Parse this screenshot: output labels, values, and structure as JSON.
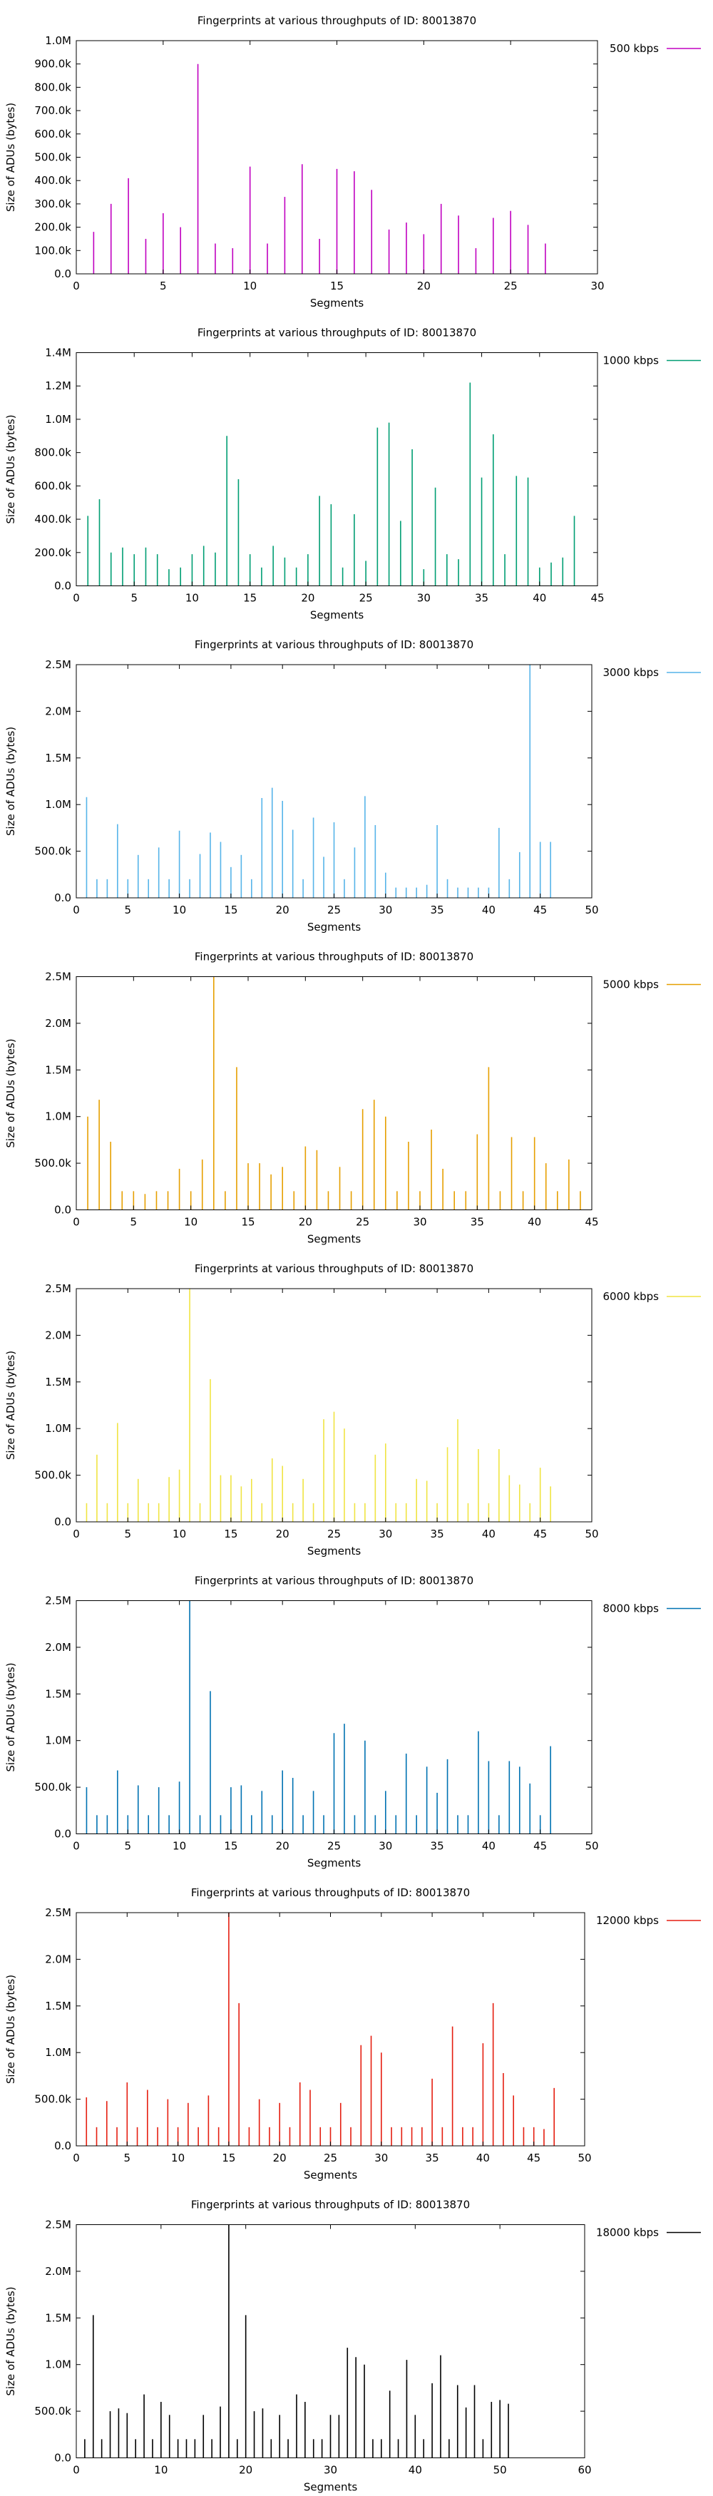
{
  "chart_data": [
    {
      "type": "bar",
      "title": "Fingerprints at various throughputs of ID: 80013870",
      "xlabel": "Segments",
      "ylabel": "Size of ADUs (bytes)",
      "legend": "500 kbps",
      "legend_position": "top-right-outside",
      "color": "#c000c0",
      "xlim": [
        0,
        30
      ],
      "ylim": [
        0,
        1000000
      ],
      "xticks": [
        0,
        5,
        10,
        15,
        20,
        25,
        30
      ],
      "xtick_labels": [
        "0",
        "5",
        "10",
        "15",
        "20",
        "25",
        "30"
      ],
      "yticks": [
        0,
        100000,
        200000,
        300000,
        400000,
        500000,
        600000,
        700000,
        800000,
        900000,
        1000000
      ],
      "ytick_labels": [
        "0.0",
        "100.0k",
        "200.0k",
        "300.0k",
        "400.0k",
        "500.0k",
        "600.0k",
        "700.0k",
        "800.0k",
        "900.0k",
        "1.0M"
      ],
      "x": [
        1,
        2,
        3,
        4,
        5,
        6,
        7,
        8,
        9,
        10,
        11,
        12,
        13,
        14,
        15,
        16,
        17,
        18,
        19,
        20,
        21,
        22,
        23,
        24,
        25,
        26,
        27
      ],
      "values": [
        180000,
        300000,
        410000,
        150000,
        260000,
        200000,
        900000,
        130000,
        110000,
        460000,
        130000,
        330000,
        470000,
        150000,
        450000,
        440000,
        360000,
        190000,
        220000,
        170000,
        300000,
        250000,
        110000,
        240000,
        270000,
        210000,
        130000
      ]
    },
    {
      "type": "bar",
      "title": "Fingerprints at various throughputs of ID: 80013870",
      "xlabel": "Segments",
      "ylabel": "Size of ADUs (bytes)",
      "legend": "1000 kbps",
      "legend_position": "top-right-outside",
      "color": "#009e73",
      "xlim": [
        0,
        45
      ],
      "ylim": [
        0,
        1400000
      ],
      "xticks": [
        0,
        5,
        10,
        15,
        20,
        25,
        30,
        35,
        40,
        45
      ],
      "xtick_labels": [
        "0",
        "5",
        "10",
        "15",
        "20",
        "25",
        "30",
        "35",
        "40",
        "45"
      ],
      "yticks": [
        0,
        200000,
        400000,
        600000,
        800000,
        1000000,
        1200000,
        1400000
      ],
      "ytick_labels": [
        "0.0",
        "200.0k",
        "400.0k",
        "600.0k",
        "800.0k",
        "1.0M",
        "1.2M",
        "1.4M"
      ],
      "x": [
        1,
        2,
        3,
        4,
        5,
        6,
        7,
        8,
        9,
        10,
        11,
        12,
        13,
        14,
        15,
        16,
        17,
        18,
        19,
        20,
        21,
        22,
        23,
        24,
        25,
        26,
        27,
        28,
        29,
        30,
        31,
        32,
        33,
        34,
        35,
        36,
        37,
        38,
        39,
        40,
        41,
        42,
        43
      ],
      "values": [
        420000,
        520000,
        200000,
        230000,
        190000,
        230000,
        190000,
        100000,
        110000,
        190000,
        240000,
        200000,
        900000,
        640000,
        190000,
        110000,
        240000,
        170000,
        110000,
        190000,
        540000,
        490000,
        110000,
        430000,
        150000,
        950000,
        980000,
        390000,
        820000,
        100000,
        590000,
        190000,
        160000,
        1220000,
        650000,
        910000,
        190000,
        660000,
        650000,
        110000,
        140000,
        170000,
        420000
      ]
    },
    {
      "type": "bar",
      "title": "Fingerprints at various throughputs of ID: 80013870",
      "xlabel": "Segments",
      "ylabel": "Size of ADUs (bytes)",
      "legend": "3000 kbps",
      "legend_position": "top-right-outside",
      "color": "#56b4e9",
      "xlim": [
        0,
        50
      ],
      "ylim": [
        0,
        2500000
      ],
      "xticks": [
        0,
        5,
        10,
        15,
        20,
        25,
        30,
        35,
        40,
        45,
        50
      ],
      "xtick_labels": [
        "0",
        "5",
        "10",
        "15",
        "20",
        "25",
        "30",
        "35",
        "40",
        "45",
        "50"
      ],
      "yticks": [
        0,
        500000,
        1000000,
        1500000,
        2000000,
        2500000
      ],
      "ytick_labels": [
        "0.0",
        "500.0k",
        "1.0M",
        "1.5M",
        "2.0M",
        "2.5M"
      ],
      "x": [
        1,
        2,
        3,
        4,
        5,
        6,
        7,
        8,
        9,
        10,
        11,
        12,
        13,
        14,
        15,
        16,
        17,
        18,
        19,
        20,
        21,
        22,
        23,
        24,
        25,
        26,
        27,
        28,
        29,
        30,
        31,
        32,
        33,
        34,
        35,
        36,
        37,
        38,
        39,
        40,
        41,
        42,
        43,
        44,
        45,
        46
      ],
      "values": [
        1080000,
        200000,
        200000,
        790000,
        200000,
        460000,
        200000,
        540000,
        200000,
        720000,
        200000,
        470000,
        700000,
        600000,
        330000,
        460000,
        200000,
        1070000,
        1180000,
        1040000,
        730000,
        200000,
        860000,
        440000,
        810000,
        200000,
        540000,
        1090000,
        780000,
        270000,
        110000,
        110000,
        110000,
        140000,
        780000,
        200000,
        110000,
        110000,
        110000,
        110000,
        750000,
        200000,
        490000,
        2500000,
        600000,
        600000
      ]
    },
    {
      "type": "bar",
      "title": "Fingerprints at various throughputs of ID: 80013870",
      "xlabel": "Segments",
      "ylabel": "Size of ADUs (bytes)",
      "legend": "5000 kbps",
      "legend_position": "top-right-outside",
      "color": "#e69f00",
      "xlim": [
        0,
        45
      ],
      "ylim": [
        0,
        2500000
      ],
      "xticks": [
        0,
        5,
        10,
        15,
        20,
        25,
        30,
        35,
        40,
        45
      ],
      "xtick_labels": [
        "0",
        "5",
        "10",
        "15",
        "20",
        "25",
        "30",
        "35",
        "40",
        "45"
      ],
      "yticks": [
        0,
        500000,
        1000000,
        1500000,
        2000000,
        2500000
      ],
      "ytick_labels": [
        "0.0",
        "500.0k",
        "1.0M",
        "1.5M",
        "2.0M",
        "2.5M"
      ],
      "x": [
        1,
        2,
        3,
        4,
        5,
        6,
        7,
        8,
        9,
        10,
        11,
        12,
        13,
        14,
        15,
        16,
        17,
        18,
        19,
        20,
        21,
        22,
        23,
        24,
        25,
        26,
        27,
        28,
        29,
        30,
        31,
        32,
        33,
        34,
        35,
        36,
        37,
        38,
        39,
        40,
        41,
        42,
        43,
        44
      ],
      "values": [
        1000000,
        1180000,
        730000,
        200000,
        200000,
        170000,
        200000,
        200000,
        440000,
        200000,
        540000,
        2500000,
        200000,
        1530000,
        500000,
        500000,
        380000,
        460000,
        200000,
        680000,
        640000,
        200000,
        460000,
        200000,
        1080000,
        1180000,
        1000000,
        200000,
        730000,
        200000,
        860000,
        440000,
        200000,
        200000,
        810000,
        1530000,
        200000,
        780000,
        200000,
        780000,
        500000,
        200000,
        540000,
        200000
      ]
    },
    {
      "type": "bar",
      "title": "Fingerprints at various throughputs of ID: 80013870",
      "xlabel": "Segments",
      "ylabel": "Size of ADUs (bytes)",
      "legend": "6000 kbps",
      "legend_position": "top-right-outside",
      "color": "#f0e442",
      "xlim": [
        0,
        50
      ],
      "ylim": [
        0,
        2500000
      ],
      "xticks": [
        0,
        5,
        10,
        15,
        20,
        25,
        30,
        35,
        40,
        45,
        50
      ],
      "xtick_labels": [
        "0",
        "5",
        "10",
        "15",
        "20",
        "25",
        "30",
        "35",
        "40",
        "45",
        "50"
      ],
      "yticks": [
        0,
        500000,
        1000000,
        1500000,
        2000000,
        2500000
      ],
      "ytick_labels": [
        "0.0",
        "500.0k",
        "1.0M",
        "1.5M",
        "2.0M",
        "2.5M"
      ],
      "x": [
        1,
        2,
        3,
        4,
        5,
        6,
        7,
        8,
        9,
        10,
        11,
        12,
        13,
        14,
        15,
        16,
        17,
        18,
        19,
        20,
        21,
        22,
        23,
        24,
        25,
        26,
        27,
        28,
        29,
        30,
        31,
        32,
        33,
        34,
        35,
        36,
        37,
        38,
        39,
        40,
        41,
        42,
        43,
        44,
        45,
        46
      ],
      "values": [
        200000,
        720000,
        200000,
        1060000,
        200000,
        460000,
        200000,
        200000,
        480000,
        560000,
        2500000,
        200000,
        1530000,
        500000,
        500000,
        380000,
        460000,
        200000,
        680000,
        600000,
        200000,
        460000,
        200000,
        1100000,
        1180000,
        1000000,
        200000,
        200000,
        720000,
        840000,
        200000,
        200000,
        460000,
        440000,
        200000,
        800000,
        1100000,
        200000,
        780000,
        200000,
        780000,
        500000,
        400000,
        200000,
        580000,
        380000
      ]
    },
    {
      "type": "bar",
      "title": "Fingerprints at various throughputs of ID: 80013870",
      "xlabel": "Segments",
      "ylabel": "Size of ADUs (bytes)",
      "legend": "8000 kbps",
      "legend_position": "top-right-outside",
      "color": "#0072b2",
      "xlim": [
        0,
        50
      ],
      "ylim": [
        0,
        2500000
      ],
      "xticks": [
        0,
        5,
        10,
        15,
        20,
        25,
        30,
        35,
        40,
        45,
        50
      ],
      "xtick_labels": [
        "0",
        "5",
        "10",
        "15",
        "20",
        "25",
        "30",
        "35",
        "40",
        "45",
        "50"
      ],
      "yticks": [
        0,
        500000,
        1000000,
        1500000,
        2000000,
        2500000
      ],
      "ytick_labels": [
        "0.0",
        "500.0k",
        "1.0M",
        "1.5M",
        "2.0M",
        "2.5M"
      ],
      "x": [
        1,
        2,
        3,
        4,
        5,
        6,
        7,
        8,
        9,
        10,
        11,
        12,
        13,
        14,
        15,
        16,
        17,
        18,
        19,
        20,
        21,
        22,
        23,
        24,
        25,
        26,
        27,
        28,
        29,
        30,
        31,
        32,
        33,
        34,
        35,
        36,
        37,
        38,
        39,
        40,
        41,
        42,
        43,
        44,
        45,
        46
      ],
      "values": [
        500000,
        200000,
        200000,
        680000,
        200000,
        520000,
        200000,
        500000,
        200000,
        560000,
        2500000,
        200000,
        1530000,
        200000,
        500000,
        520000,
        200000,
        460000,
        200000,
        680000,
        600000,
        200000,
        460000,
        200000,
        1080000,
        1180000,
        200000,
        1000000,
        200000,
        460000,
        200000,
        860000,
        200000,
        720000,
        440000,
        800000,
        200000,
        200000,
        1100000,
        780000,
        200000,
        780000,
        720000,
        540000,
        200000,
        940000
      ]
    },
    {
      "type": "bar",
      "title": "Fingerprints at various throughputs of ID: 80013870",
      "xlabel": "Segments",
      "ylabel": "Size of ADUs (bytes)",
      "legend": "12000 kbps",
      "legend_position": "top-right-outside",
      "color": "#e51e10",
      "xlim": [
        0,
        50
      ],
      "ylim": [
        0,
        2500000
      ],
      "xticks": [
        0,
        5,
        10,
        15,
        20,
        25,
        30,
        35,
        40,
        45,
        50
      ],
      "xtick_labels": [
        "0",
        "5",
        "10",
        "15",
        "20",
        "25",
        "30",
        "35",
        "40",
        "45",
        "50"
      ],
      "yticks": [
        0,
        500000,
        1000000,
        1500000,
        2000000,
        2500000
      ],
      "ytick_labels": [
        "0.0",
        "500.0k",
        "1.0M",
        "1.5M",
        "2.0M",
        "2.5M"
      ],
      "x": [
        1,
        2,
        3,
        4,
        5,
        6,
        7,
        8,
        9,
        10,
        11,
        12,
        13,
        14,
        15,
        16,
        17,
        18,
        19,
        20,
        21,
        22,
        23,
        24,
        25,
        26,
        27,
        28,
        29,
        30,
        31,
        32,
        33,
        34,
        35,
        36,
        37,
        38,
        39,
        40,
        41,
        42,
        43,
        44,
        45,
        46,
        47
      ],
      "values": [
        520000,
        200000,
        480000,
        200000,
        680000,
        200000,
        600000,
        200000,
        500000,
        200000,
        460000,
        200000,
        540000,
        200000,
        2500000,
        1530000,
        200000,
        500000,
        200000,
        460000,
        200000,
        680000,
        600000,
        200000,
        200000,
        460000,
        200000,
        1080000,
        1180000,
        1000000,
        200000,
        200000,
        200000,
        200000,
        720000,
        200000,
        1280000,
        200000,
        200000,
        1100000,
        1530000,
        780000,
        540000,
        200000,
        200000,
        180000,
        620000
      ]
    },
    {
      "type": "bar",
      "title": "Fingerprints at various throughputs of ID: 80013870",
      "xlabel": "Segments",
      "ylabel": "Size of ADUs (bytes)",
      "legend": "18000 kbps",
      "legend_position": "top-right-outside",
      "color": "#000000",
      "xlim": [
        0,
        60
      ],
      "ylim": [
        0,
        2500000
      ],
      "xticks": [
        0,
        10,
        20,
        30,
        40,
        50,
        60
      ],
      "xtick_labels": [
        "0",
        "10",
        "20",
        "30",
        "40",
        "50",
        "60"
      ],
      "yticks": [
        0,
        500000,
        1000000,
        1500000,
        2000000,
        2500000
      ],
      "ytick_labels": [
        "0.0",
        "500.0k",
        "1.0M",
        "1.5M",
        "2.0M",
        "2.5M"
      ],
      "x": [
        1,
        2,
        3,
        4,
        5,
        6,
        7,
        8,
        9,
        10,
        11,
        12,
        13,
        14,
        15,
        16,
        17,
        18,
        19,
        20,
        21,
        22,
        23,
        24,
        25,
        26,
        27,
        28,
        29,
        30,
        31,
        32,
        33,
        34,
        35,
        36,
        37,
        38,
        39,
        40,
        41,
        42,
        43,
        44,
        45,
        46,
        47,
        48,
        49,
        50,
        51
      ],
      "values": [
        200000,
        1530000,
        200000,
        500000,
        530000,
        480000,
        200000,
        680000,
        200000,
        600000,
        460000,
        200000,
        200000,
        200000,
        460000,
        200000,
        550000,
        2500000,
        200000,
        1530000,
        500000,
        530000,
        200000,
        460000,
        200000,
        680000,
        600000,
        200000,
        200000,
        460000,
        460000,
        1180000,
        1080000,
        1000000,
        200000,
        200000,
        720000,
        200000,
        1050000,
        460000,
        200000,
        800000,
        1100000,
        200000,
        780000,
        540000,
        780000,
        200000,
        600000,
        620000,
        580000
      ]
    }
  ]
}
